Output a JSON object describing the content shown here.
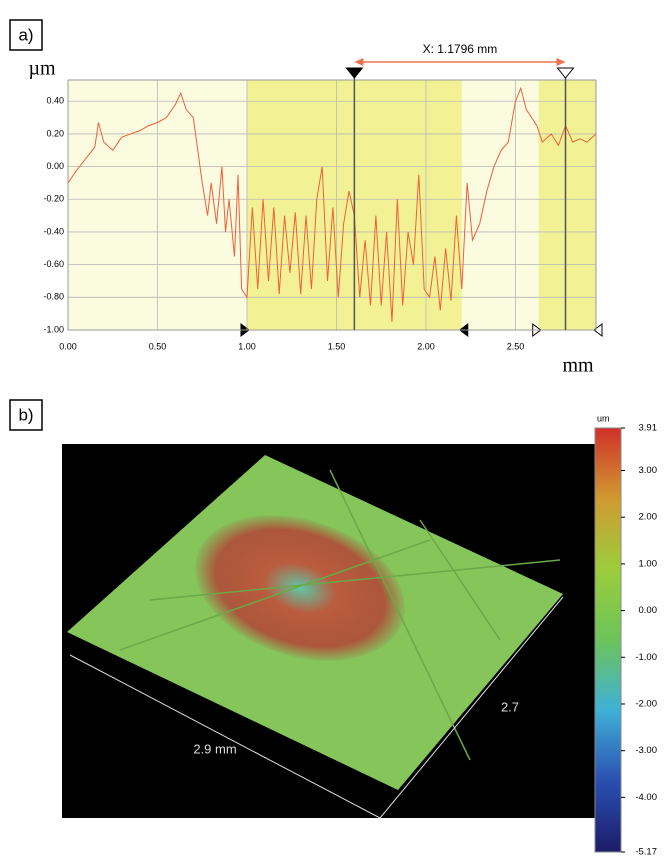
{
  "chart_data": [
    {
      "type": "line",
      "panel_label": "a)",
      "y_unit": "µm",
      "x_unit": "mm",
      "x": [
        0,
        0.05,
        0.1,
        0.15,
        0.17,
        0.2,
        0.25,
        0.3,
        0.35,
        0.4,
        0.45,
        0.5,
        0.55,
        0.6,
        0.63,
        0.66,
        0.7,
        0.75,
        0.78,
        0.8,
        0.83,
        0.86,
        0.88,
        0.9,
        0.93,
        0.95,
        0.97,
        1.0,
        1.03,
        1.06,
        1.09,
        1.12,
        1.15,
        1.18,
        1.21,
        1.24,
        1.27,
        1.3,
        1.33,
        1.36,
        1.39,
        1.42,
        1.45,
        1.48,
        1.51,
        1.54,
        1.57,
        1.6,
        1.63,
        1.66,
        1.69,
        1.72,
        1.75,
        1.78,
        1.81,
        1.84,
        1.87,
        1.9,
        1.93,
        1.96,
        1.99,
        2.02,
        2.05,
        2.08,
        2.11,
        2.14,
        2.17,
        2.2,
        2.23,
        2.26,
        2.3,
        2.34,
        2.38,
        2.42,
        2.46,
        2.5,
        2.53,
        2.56,
        2.59,
        2.62,
        2.65,
        2.7,
        2.74,
        2.78,
        2.82,
        2.86,
        2.9,
        2.95
      ],
      "series": [
        {
          "color": "#f0603a",
          "values": [
            -0.1,
            -0.02,
            0.05,
            0.12,
            0.27,
            0.15,
            0.1,
            0.18,
            0.2,
            0.22,
            0.25,
            0.27,
            0.3,
            0.38,
            0.45,
            0.35,
            0.3,
            -0.1,
            -0.3,
            -0.1,
            -0.35,
            0.0,
            -0.4,
            -0.2,
            -0.55,
            -0.05,
            -0.75,
            -0.8,
            -0.25,
            -0.75,
            -0.2,
            -0.7,
            -0.25,
            -0.78,
            -0.3,
            -0.65,
            -0.28,
            -0.78,
            -0.3,
            -0.75,
            -0.2,
            0.0,
            -0.7,
            -0.25,
            -0.8,
            -0.35,
            -0.15,
            -0.3,
            -0.8,
            -0.45,
            -0.85,
            -0.3,
            -0.85,
            -0.4,
            -0.95,
            -0.2,
            -0.85,
            -0.4,
            -0.6,
            -0.05,
            -0.75,
            -0.8,
            -0.55,
            -0.88,
            -0.5,
            -0.82,
            -0.3,
            -0.75,
            -0.1,
            -0.45,
            -0.35,
            -0.15,
            0.0,
            0.1,
            0.15,
            0.4,
            0.48,
            0.35,
            0.3,
            0.25,
            0.15,
            0.2,
            0.13,
            0.25,
            0.15,
            0.17,
            0.15,
            0.2
          ]
        }
      ],
      "xlim": [
        0,
        2.95
      ],
      "ylim": [
        -1.0,
        0.53
      ],
      "xticks": [
        {
          "value": 0,
          "label": "0.00"
        },
        {
          "value": 0.5,
          "label": "0.50"
        },
        {
          "value": 1,
          "label": "1.00"
        },
        {
          "value": 1.5,
          "label": "1.50"
        },
        {
          "value": 2,
          "label": "2.00"
        },
        {
          "value": 2.5,
          "label": "2.50"
        }
      ],
      "yticks": [
        {
          "value": -1,
          "label": "-1.00"
        },
        {
          "value": -0.8,
          "label": "-0.80"
        },
        {
          "value": -0.6,
          "label": "-0.60"
        },
        {
          "value": -0.4,
          "label": "-0.40"
        },
        {
          "value": -0.2,
          "label": "-0.20"
        },
        {
          "value": 0,
          "label": "0.00"
        },
        {
          "value": 0.2,
          "label": "0.20"
        },
        {
          "value": 0.4,
          "label": "0.40"
        }
      ],
      "grid": true,
      "regions": [
        [
          1.0,
          2.2
        ],
        [
          2.63,
          2.95
        ]
      ],
      "cursors": [
        1.6,
        2.7796
      ],
      "cursor_label": "X: 1.1796 mm"
    },
    {
      "type": "colorbar",
      "panel_label": "b)",
      "unit": "um",
      "zlim": [
        -5.17,
        3.91
      ],
      "ticks": [
        3.91,
        {
          "value": 3,
          "label": "3.00"
        },
        {
          "value": 2,
          "label": "2.00"
        },
        {
          "value": 1,
          "label": "1.00"
        },
        {
          "value": 0,
          "label": "0.00"
        },
        {
          "value": -1,
          "label": "-1.00"
        },
        {
          "value": -2,
          "label": "-2.00"
        },
        {
          "value": -3,
          "label": "-3.00"
        },
        {
          "value": -4,
          "label": "-4.00"
        },
        -5.17
      ],
      "colormap": [
        "#1c1c6a",
        "#2a4fb0",
        "#3fb0d8",
        "#6cc45a",
        "#9ccd3c",
        "#d09a30",
        "#d0302a"
      ],
      "annotations": [
        "2.9 mm",
        "2.7"
      ]
    }
  ]
}
